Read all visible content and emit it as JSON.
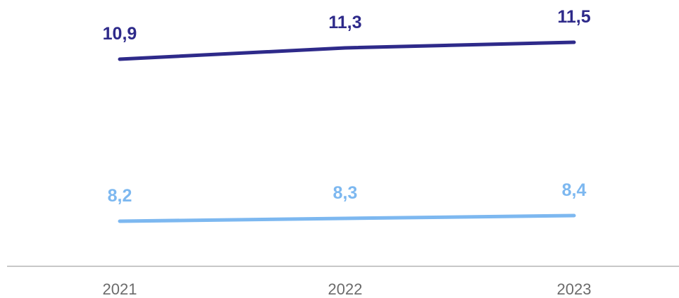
{
  "chart_data": {
    "type": "line",
    "categories": [
      "2021",
      "2022",
      "2023"
    ],
    "series": [
      {
        "values": [
          10.9,
          11.3,
          11.5
        ],
        "labels": [
          "10,9",
          "11,3",
          "11,5"
        ],
        "color": "#2e2a8a"
      },
      {
        "values": [
          8.2,
          8.3,
          8.4
        ],
        "labels": [
          "8,2",
          "8,3",
          "8,4"
        ],
        "color": "#7db8f0"
      }
    ],
    "axis_color": "#c8c8c8",
    "tick_label_color": "#6b6b6b",
    "grid": false,
    "legend": "none"
  }
}
